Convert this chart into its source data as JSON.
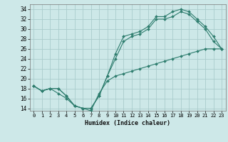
{
  "xlabel": "Humidex (Indice chaleur)",
  "bg_color": "#cde8e8",
  "grid_color": "#aacccc",
  "line_color": "#2e7d6e",
  "xlim": [
    -0.5,
    23.5
  ],
  "ylim": [
    13.5,
    35.0
  ],
  "xticks": [
    0,
    1,
    2,
    3,
    4,
    5,
    6,
    7,
    8,
    9,
    10,
    11,
    12,
    13,
    14,
    15,
    16,
    17,
    18,
    19,
    20,
    21,
    22,
    23
  ],
  "yticks": [
    14,
    16,
    18,
    20,
    22,
    24,
    26,
    28,
    30,
    32,
    34
  ],
  "line1_x": [
    0,
    1,
    2,
    3,
    4,
    5,
    6,
    7,
    8,
    9,
    10,
    11,
    12,
    13,
    14,
    15,
    16,
    17,
    18,
    19,
    20,
    21,
    22,
    23
  ],
  "line1_y": [
    18.5,
    17.5,
    18.0,
    18.0,
    16.5,
    14.5,
    14.0,
    14.0,
    16.5,
    20.5,
    25.0,
    28.5,
    29.0,
    29.5,
    30.5,
    32.5,
    32.5,
    33.5,
    34.0,
    33.5,
    32.0,
    30.5,
    28.5,
    26.0
  ],
  "line2_x": [
    0,
    1,
    2,
    3,
    4,
    5,
    6,
    7,
    8,
    9,
    10,
    11,
    12,
    13,
    14,
    15,
    16,
    17,
    18,
    19,
    20,
    21,
    22,
    23
  ],
  "line2_y": [
    18.5,
    17.5,
    18.0,
    18.0,
    16.5,
    14.5,
    14.0,
    14.0,
    16.5,
    20.5,
    24.0,
    27.5,
    28.5,
    29.0,
    30.0,
    32.0,
    32.0,
    32.5,
    33.5,
    33.0,
    31.5,
    30.0,
    27.5,
    26.0
  ],
  "line3_x": [
    0,
    1,
    2,
    3,
    4,
    5,
    6,
    7,
    8,
    9,
    10,
    11,
    12,
    13,
    14,
    15,
    16,
    17,
    18,
    19,
    20,
    21,
    22,
    23
  ],
  "line3_y": [
    18.5,
    17.5,
    18.0,
    17.0,
    16.0,
    14.5,
    14.0,
    13.5,
    17.0,
    19.5,
    20.5,
    21.0,
    21.5,
    22.0,
    22.5,
    23.0,
    23.5,
    24.0,
    24.5,
    25.0,
    25.5,
    26.0,
    26.0,
    26.0
  ]
}
